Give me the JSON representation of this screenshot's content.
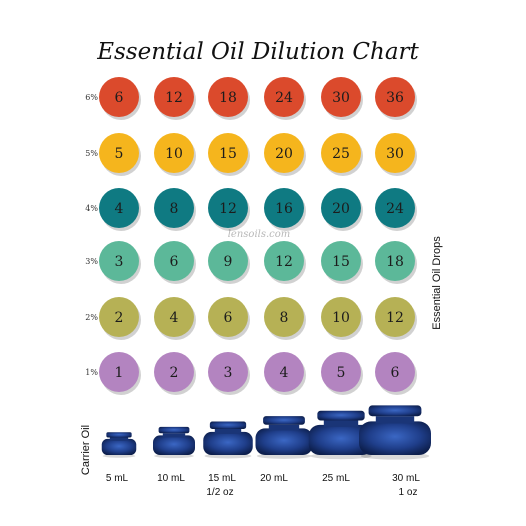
{
  "chart_data": {
    "type": "table",
    "title": "Essential Oil Dilution Chart",
    "watermark": "lensoils.com",
    "ylabel": "Essential Oil Drops",
    "xlabel": "Carrier Oil",
    "rows": [
      {
        "label": "6%",
        "color": "#db4a2c",
        "values": [
          6,
          12,
          18,
          24,
          30,
          36
        ]
      },
      {
        "label": "5%",
        "color": "#f5b51d",
        "values": [
          5,
          10,
          15,
          20,
          25,
          30
        ]
      },
      {
        "label": "4%",
        "color": "#0f7a82",
        "values": [
          4,
          8,
          12,
          16,
          20,
          24
        ]
      },
      {
        "label": "3%",
        "color": "#5cb899",
        "values": [
          3,
          6,
          9,
          12,
          15,
          18
        ]
      },
      {
        "label": "2%",
        "color": "#b6b155",
        "values": [
          2,
          4,
          6,
          8,
          10,
          12
        ]
      },
      {
        "label": "1%",
        "color": "#b384c0",
        "values": [
          1,
          2,
          3,
          4,
          5,
          6
        ]
      }
    ],
    "columns": [
      {
        "label": "5 mL",
        "sublabel": ""
      },
      {
        "label": "10 mL",
        "sublabel": ""
      },
      {
        "label": "15 mL",
        "sublabel": "1/2 oz"
      },
      {
        "label": "20 mL",
        "sublabel": ""
      },
      {
        "label": "25 mL",
        "sublabel": ""
      },
      {
        "label": "30 mL",
        "sublabel": "1 oz"
      }
    ],
    "bottle_color": "#1f3e8a"
  }
}
